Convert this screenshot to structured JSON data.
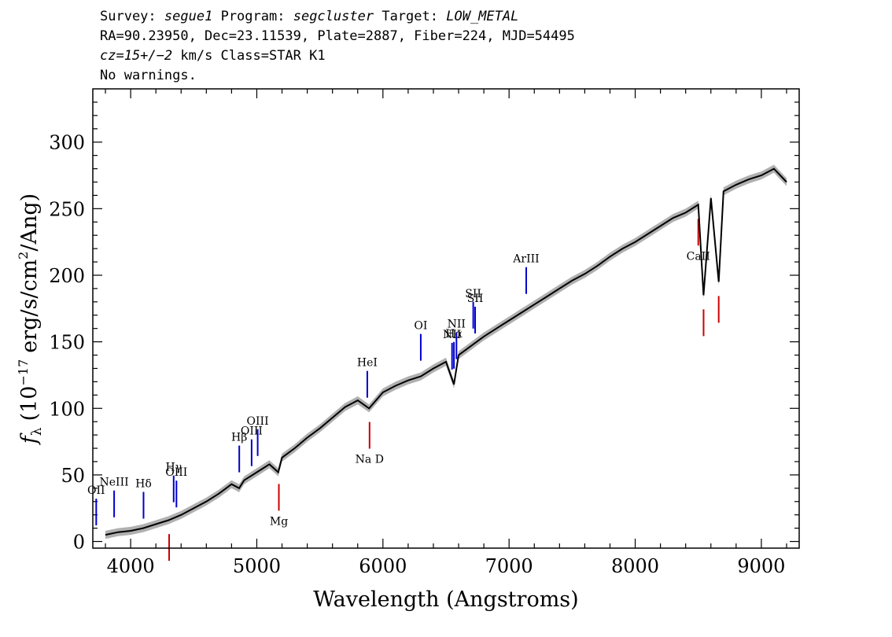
{
  "header": {
    "survey_label": "Survey:",
    "survey": "segue1",
    "program_label": "Program:",
    "program": "segcluster",
    "target_label": "Target:",
    "target": "LOW_METAL",
    "line2": "RA=90.23950, Dec=23.11539, Plate=2887, Fiber=224, MJD=54495",
    "cz": "cz=15+/−2",
    "cz_units": "km/s Class=STAR K1",
    "line4": "No warnings."
  },
  "chart_data": {
    "type": "line",
    "xlabel": "Wavelength (Angstroms)",
    "ylabel_symbol": "f",
    "ylabel_sub": "λ",
    "ylabel_pre": "(10",
    "ylabel_exp": "−17",
    "ylabel_mid": "erg/s/cm",
    "ylabel_exp2": "2",
    "ylabel_post": "/Ang)",
    "xlim": [
      3700,
      9300
    ],
    "ylim": [
      -5,
      340
    ],
    "xticks": [
      4000,
      5000,
      6000,
      7000,
      8000,
      9000
    ],
    "yticks": [
      0,
      50,
      100,
      150,
      200,
      250,
      300
    ],
    "xtick_labels": [
      "4000",
      "5000",
      "6000",
      "7000",
      "8000",
      "9000"
    ],
    "ytick_labels": [
      "0",
      "50",
      "100",
      "150",
      "200",
      "250",
      "300"
    ],
    "series": [
      {
        "color": "#000000",
        "x": [
          3800,
          3900,
          4000,
          4100,
          4200,
          4300,
          4400,
          4500,
          4600,
          4700,
          4800,
          4860,
          4900,
          5000,
          5100,
          5170,
          5200,
          5300,
          5400,
          5500,
          5600,
          5700,
          5800,
          5890,
          6000,
          6100,
          6200,
          6300,
          6400,
          6500,
          6563,
          6600,
          6700,
          6800,
          6900,
          7000,
          7100,
          7200,
          7300,
          7400,
          7500,
          7600,
          7700,
          7800,
          7900,
          8000,
          8100,
          8200,
          8300,
          8400,
          8500,
          8542,
          8600,
          8662,
          8700,
          8800,
          8900,
          9000,
          9100,
          9200
        ],
        "y": [
          5,
          7,
          8,
          10,
          13,
          16,
          20,
          25,
          30,
          36,
          43,
          40,
          46,
          52,
          58,
          52,
          63,
          70,
          78,
          85,
          93,
          101,
          106,
          100,
          112,
          117,
          121,
          124,
          130,
          135,
          118,
          140,
          147,
          154,
          160,
          166,
          172,
          178,
          184,
          190,
          196,
          201,
          207,
          214,
          220,
          225,
          231,
          237,
          243,
          247,
          253,
          185,
          258,
          195,
          263,
          268,
          272,
          275,
          280,
          270
        ]
      }
    ],
    "emission_lines": [
      {
        "label": "OII",
        "x": 3727
      },
      {
        "label": "NeIII",
        "x": 3869
      },
      {
        "label": "Hδ",
        "x": 4102
      },
      {
        "label": "Hγ",
        "x": 4341
      },
      {
        "label": "OIII",
        "x": 4363
      },
      {
        "label": "Hβ",
        "x": 4861
      },
      {
        "label": "OIII",
        "x": 4959
      },
      {
        "label": "OIII",
        "x": 5007
      },
      {
        "label": "HeI",
        "x": 5876
      },
      {
        "label": "OI",
        "x": 6300
      },
      {
        "label": "NII",
        "x": 6548
      },
      {
        "label": "Hα",
        "x": 6563
      },
      {
        "label": "NII",
        "x": 6583
      },
      {
        "label": "SII",
        "x": 6716
      },
      {
        "label": "SII",
        "x": 6731
      },
      {
        "label": "ArIII",
        "x": 7136
      }
    ],
    "absorption_lines": [
      {
        "label": "",
        "x": 4305
      },
      {
        "label": "Mg",
        "x": 5175
      },
      {
        "label": "Na D",
        "x": 5894
      },
      {
        "label": "CaII",
        "x": 8500
      },
      {
        "label": "",
        "x": 8542
      },
      {
        "label": "",
        "x": 8662
      }
    ],
    "colors": {
      "spectrum": "#000000",
      "error": "#b0b0b0",
      "emission": "#0000cc",
      "absorption": "#cc0000"
    }
  }
}
